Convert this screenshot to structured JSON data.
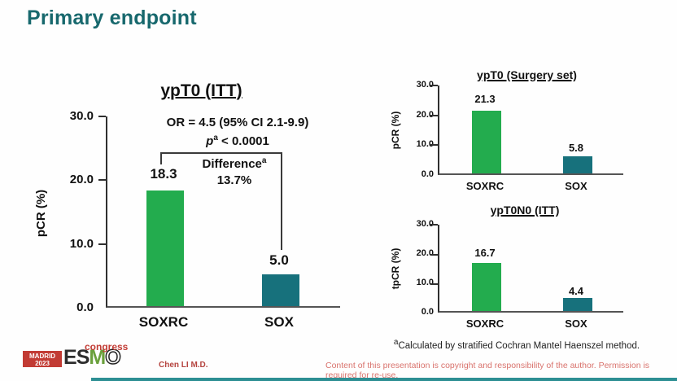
{
  "slide": {
    "title": "Primary endpoint"
  },
  "chart_data": [
    {
      "type": "bar",
      "title": "ypT0 (ITT)",
      "categories": [
        "SOXRC",
        "SOX"
      ],
      "values": [
        18.3,
        5.0
      ],
      "value_labels": [
        "18.3",
        "5.0"
      ],
      "bar_colors": [
        "#23ac4e",
        "#17717c"
      ],
      "ylabel": "pCR (%)",
      "yticks": [
        "30.0",
        "20.0",
        "10.0",
        "0.0"
      ],
      "ylim": [
        0,
        30
      ],
      "grid": false,
      "legend": "none",
      "annotations": {
        "or": "OR = 4.5 (95% CI 2.1-9.9)",
        "p_var": "p",
        "p_sup": "a",
        "p_rest": " < 0.0001",
        "diff_label": "Difference",
        "diff_sup": "a",
        "diff_value": "13.7%"
      }
    },
    {
      "type": "bar",
      "title": "ypT0 (Surgery set)",
      "categories": [
        "SOXRC",
        "SOX"
      ],
      "values": [
        21.3,
        5.8
      ],
      "value_labels": [
        "21.3",
        "5.8"
      ],
      "bar_colors": [
        "#23ac4e",
        "#17717c"
      ],
      "ylabel": "pCR (%)",
      "yticks": [
        "30.0",
        "20.0",
        "10.0",
        "0.0"
      ],
      "ylim": [
        0,
        30
      ],
      "grid": false,
      "legend": "none"
    },
    {
      "type": "bar",
      "title": "ypT0N0 (ITT)",
      "categories": [
        "SOXRC",
        "SOX"
      ],
      "values": [
        16.7,
        4.4
      ],
      "value_labels": [
        "16.7",
        "4.4"
      ],
      "bar_colors": [
        "#23ac4e",
        "#17717c"
      ],
      "ylabel": "tpCR (%)",
      "yticks": [
        "30.0",
        "20.0",
        "10.0",
        "0.0"
      ],
      "ylim": [
        0,
        30
      ],
      "grid": false,
      "legend": "none"
    }
  ],
  "footnote": {
    "sup": "a",
    "text": "Calculated by stratified Cochran Mantel Haenszel method."
  },
  "footer": {
    "author": "Chen LI M.D.",
    "copyright": "Content of this presentation is copyright and responsibility of the author. Permission is required for re-use."
  },
  "logo": {
    "city": "MADRID",
    "year": "2023",
    "letters": [
      "E",
      "S",
      "M",
      "O"
    ],
    "suffix": "congress"
  },
  "colors": {
    "title_teal": "#17686d",
    "green_bar": "#23ac4e",
    "teal_bar": "#17717c",
    "logo_red": "#c23b34",
    "copyright_red": "#d9736d",
    "footer_bar": "#2d8f93"
  }
}
